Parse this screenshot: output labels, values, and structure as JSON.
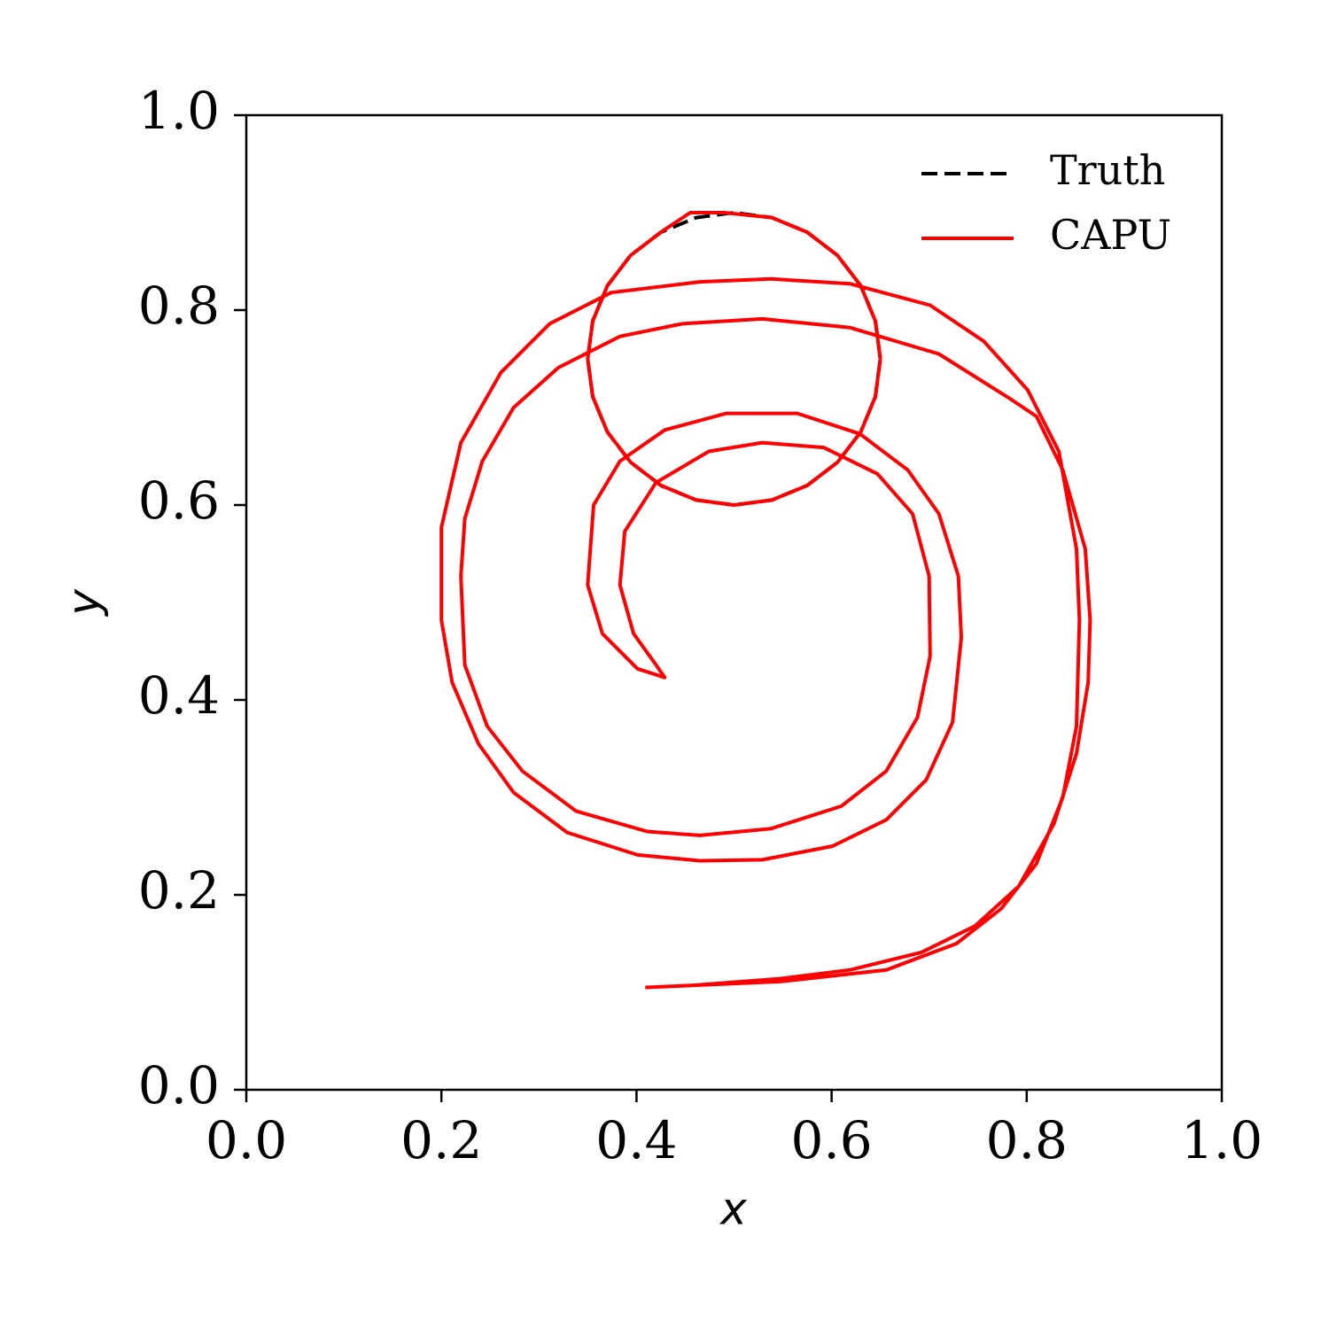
{
  "chart_data": {
    "type": "line",
    "xlabel": "x",
    "ylabel": "y",
    "xlim": [
      0,
      1
    ],
    "ylim": [
      0,
      1
    ],
    "xticks": [
      {
        "value": 0,
        "label": "0.0"
      },
      0.2,
      0.4,
      0.6,
      0.8,
      {
        "value": 1,
        "label": "1.0"
      }
    ],
    "yticks": [
      {
        "value": 0,
        "label": "0.0"
      },
      0.2,
      0.4,
      0.6,
      0.8,
      {
        "value": 1,
        "label": "1.0"
      }
    ],
    "legend": "upper right",
    "series": [
      {
        "name": "Truth",
        "color": "#000000",
        "linestyle": "dashed",
        "x": [
          0.65,
          0.6449,
          0.6299,
          0.6061,
          0.575,
          0.5388,
          0.5,
          0.4612,
          0.425,
          0.3939,
          0.3701,
          0.3551,
          0.35,
          0.3551,
          0.3701,
          0.3939,
          0.425,
          0.4612,
          0.5,
          0.5388,
          0.575,
          0.6061,
          0.6299,
          0.6449,
          0.65
        ],
        "values": [
          0.75,
          0.7888,
          0.825,
          0.8561,
          0.8799,
          0.8949,
          0.9,
          0.8949,
          0.8799,
          0.8561,
          0.825,
          0.7888,
          0.75,
          0.7112,
          0.675,
          0.6439,
          0.6201,
          0.6051,
          0.6,
          0.6051,
          0.6201,
          0.6439,
          0.675,
          0.7112,
          0.75
        ]
      },
      {
        "name": "CAPU",
        "color": "#ff0000",
        "linestyle": "solid",
        "x": [
          0.65,
          0.6449,
          0.6299,
          0.6061,
          0.575,
          0.5388,
          0.49,
          0.455,
          0.425,
          0.3939,
          0.3701,
          0.3551,
          0.35,
          0.3551,
          0.3701,
          0.3939,
          0.425,
          0.4612,
          0.5,
          0.5388,
          0.575,
          0.6061,
          0.6299,
          0.6449,
          0.65,
          null,
          0.409,
          0.547,
          0.656,
          0.728,
          0.774,
          0.81,
          0.837,
          0.851,
          0.854,
          0.851,
          0.833,
          0.801,
          0.756,
          0.701,
          0.619,
          0.538,
          0.465,
          0.374,
          0.311,
          0.261,
          0.22,
          0.2,
          0.2,
          0.211,
          0.238,
          0.274,
          0.329,
          0.401,
          0.465,
          0.529,
          0.601,
          0.656,
          0.697,
          0.724,
          0.733,
          0.73,
          0.71,
          0.678,
          0.629,
          0.565,
          0.492,
          0.429,
          0.383,
          0.356,
          0.35,
          0.365,
          0.401,
          0.429,
          0.42,
          0.397,
          0.383,
          0.388,
          0.42,
          0.474,
          0.529,
          0.592,
          0.647,
          0.683,
          0.7,
          0.701,
          0.688,
          0.656,
          0.61,
          0.538,
          0.465,
          0.411,
          0.338,
          0.283,
          0.247,
          0.224,
          0.22,
          0.224,
          0.242,
          0.274,
          0.32,
          0.383,
          0.447,
          0.529,
          0.619,
          0.71,
          0.783,
          0.81,
          0.837,
          0.86,
          0.865,
          0.863,
          0.851,
          0.828,
          0.792,
          0.747,
          0.692,
          0.619,
          0.547,
          0.456,
          0.409
        ],
        "values": [
          0.75,
          0.7888,
          0.825,
          0.8561,
          0.8799,
          0.8949,
          0.9,
          0.9,
          0.8799,
          0.8561,
          0.825,
          0.7888,
          0.75,
          0.7112,
          0.675,
          0.6439,
          0.6201,
          0.6051,
          0.6,
          0.6051,
          0.6201,
          0.6439,
          0.675,
          0.7112,
          0.75,
          null,
          0.105,
          0.111,
          0.123,
          0.15,
          0.186,
          0.232,
          0.3,
          0.373,
          0.482,
          0.555,
          0.655,
          0.718,
          0.768,
          0.805,
          0.827,
          0.832,
          0.829,
          0.818,
          0.786,
          0.736,
          0.664,
          0.577,
          0.482,
          0.418,
          0.355,
          0.305,
          0.264,
          0.241,
          0.235,
          0.236,
          0.25,
          0.277,
          0.318,
          0.377,
          0.464,
          0.527,
          0.591,
          0.636,
          0.673,
          0.694,
          0.694,
          0.677,
          0.645,
          0.6,
          0.518,
          0.468,
          0.432,
          0.423,
          0.436,
          0.468,
          0.518,
          0.573,
          0.623,
          0.655,
          0.664,
          0.659,
          0.632,
          0.591,
          0.527,
          0.445,
          0.382,
          0.327,
          0.291,
          0.268,
          0.261,
          0.265,
          0.286,
          0.327,
          0.373,
          0.436,
          0.527,
          0.586,
          0.645,
          0.7,
          0.741,
          0.773,
          0.786,
          0.791,
          0.782,
          0.755,
          0.709,
          0.691,
          0.636,
          0.555,
          0.482,
          0.418,
          0.345,
          0.273,
          0.209,
          0.168,
          0.141,
          0.123,
          0.114,
          0.107,
          0.105
        ]
      }
    ]
  }
}
